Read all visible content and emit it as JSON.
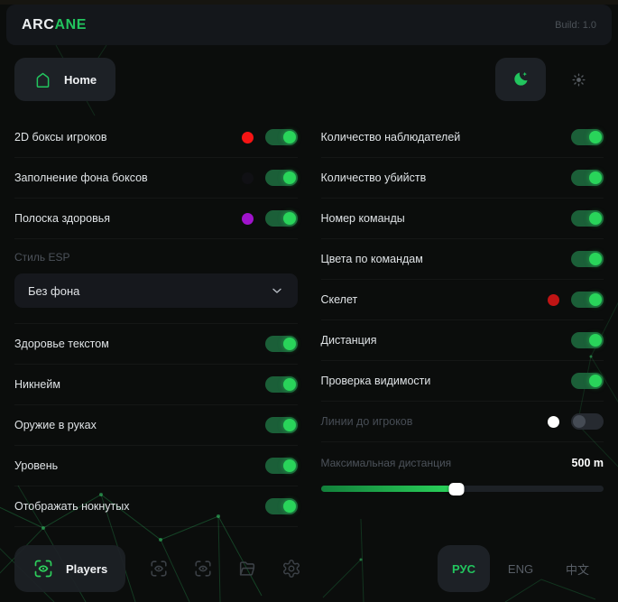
{
  "brand": {
    "prefix": "ARC",
    "suffix": "ANE"
  },
  "build_label": "Build: 1.0",
  "nav": {
    "home": "Home"
  },
  "left": {
    "rows": [
      {
        "label": "2D боксы игроков",
        "color": "#f61414",
        "on": true
      },
      {
        "label": "Заполнение фона боксов",
        "color": "#101014",
        "on": true
      },
      {
        "label": "Полоска здоровья",
        "color": "#a013cc",
        "on": true
      },
      {
        "label": "Здоровье текстом",
        "on": true
      },
      {
        "label": "Никнейм",
        "on": true
      },
      {
        "label": "Оружие в руках",
        "on": true
      },
      {
        "label": "Уровень",
        "on": true
      },
      {
        "label": "Отображать нокнутых",
        "on": true
      }
    ],
    "esp": {
      "label": "Стиль ESP",
      "value": "Без фона"
    }
  },
  "right": {
    "rows": [
      {
        "label": "Количество наблюдателей",
        "on": true
      },
      {
        "label": "Количество убийств",
        "on": true
      },
      {
        "label": "Номер команды",
        "on": true
      },
      {
        "label": "Цвета по командам",
        "on": true
      },
      {
        "label": "Скелет",
        "color": "#c01414",
        "on": true
      },
      {
        "label": "Дистанция",
        "on": true
      },
      {
        "label": "Проверка видимости",
        "on": true
      },
      {
        "label": "Линии до игроков",
        "color": "#ffffff",
        "on": false
      }
    ],
    "slider": {
      "label": "Максимальная дистанция",
      "display": "500 m",
      "percent": 48
    }
  },
  "footer": {
    "players": "Players",
    "languages": [
      {
        "label": "РУС",
        "active": true
      },
      {
        "label": "ENG",
        "active": false
      },
      {
        "label": "中文",
        "active": false
      }
    ]
  },
  "colors": {
    "accent": "#22c55e",
    "toggle_on_track": "#1b5f38",
    "toggle_knob_on": "#29d45a",
    "mesh": "#2fbf63"
  },
  "icons": {
    "home": "home-icon",
    "theme_dark": "moon-icon",
    "theme_light": "sun-icon",
    "dropdown": "chevron-down-icon",
    "players": "eye-scan-icon",
    "footer_tools": [
      "eye-scan-icon",
      "eye-scan-icon",
      "folder-icon",
      "gear-icon"
    ]
  }
}
